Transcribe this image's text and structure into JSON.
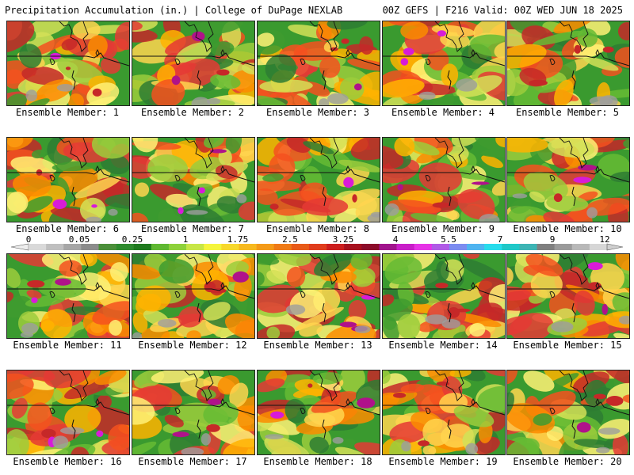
{
  "header": {
    "title_left": "Precipitation Accumulation (in.) | College of DuPage NEXLAB",
    "title_right": "00Z GEFS | F216 Valid: 00Z WED JUN 18 2025"
  },
  "colorbar": {
    "tick_labels": [
      "0",
      "0.05",
      "0.25",
      "1",
      "1.75",
      "2.5",
      "3.25",
      "4",
      "5.5",
      "7",
      "9",
      "12"
    ],
    "colors": [
      "#d9d9d9",
      "#bfbfbf",
      "#a6a6a6",
      "#8c8c8c",
      "#4b8f3a",
      "#2e8b2e",
      "#1f7a1f",
      "#5fb832",
      "#8dd13a",
      "#c7e646",
      "#f5f53c",
      "#f7d82c",
      "#f7b91e",
      "#f49a18",
      "#ef7a16",
      "#e85a18",
      "#e03c1c",
      "#cc1e1e",
      "#a6101e",
      "#8c0c2a",
      "#a0148c",
      "#c81ec8",
      "#e633e6",
      "#b05ae6",
      "#7c8cf0",
      "#4fb4f0",
      "#27dcec",
      "#1fc8c8",
      "#3cb4b4",
      "#7f7f7f",
      "#9a9a9a",
      "#b8b8b8",
      "#d6d6d6"
    ]
  },
  "panels": [
    {
      "label": "Ensemble Member: 1",
      "seed": 11,
      "intensity": 0.8
    },
    {
      "label": "Ensemble Member: 2",
      "seed": 23,
      "intensity": 0.78
    },
    {
      "label": "Ensemble Member: 3",
      "seed": 37,
      "intensity": 0.7
    },
    {
      "label": "Ensemble Member: 4",
      "seed": 41,
      "intensity": 0.82
    },
    {
      "label": "Ensemble Member: 5",
      "seed": 53,
      "intensity": 0.65
    },
    {
      "label": "Ensemble Member: 6",
      "seed": 67,
      "intensity": 0.7
    },
    {
      "label": "Ensemble Member: 7",
      "seed": 71,
      "intensity": 0.75
    },
    {
      "label": "Ensemble Member: 8",
      "seed": 83,
      "intensity": 0.8
    },
    {
      "label": "Ensemble Member: 9",
      "seed": 97,
      "intensity": 0.55
    },
    {
      "label": "Ensemble Member: 10",
      "seed": 101,
      "intensity": 0.78
    },
    {
      "label": "Ensemble Member: 11",
      "seed": 113,
      "intensity": 0.65
    },
    {
      "label": "Ensemble Member: 12",
      "seed": 127,
      "intensity": 0.55
    },
    {
      "label": "Ensemble Member: 13",
      "seed": 131,
      "intensity": 0.8
    },
    {
      "label": "Ensemble Member: 14",
      "seed": 149,
      "intensity": 0.45
    },
    {
      "label": "Ensemble Member: 15",
      "seed": 151,
      "intensity": 0.68
    },
    {
      "label": "Ensemble Member: 16",
      "seed": 163,
      "intensity": 0.85
    },
    {
      "label": "Ensemble Member: 17",
      "seed": 173,
      "intensity": 0.55
    },
    {
      "label": "Ensemble Member: 18",
      "seed": 181,
      "intensity": 0.75
    },
    {
      "label": "Ensemble Member: 19",
      "seed": 191,
      "intensity": 0.78
    },
    {
      "label": "Ensemble Member: 20",
      "seed": 199,
      "intensity": 0.48
    }
  ]
}
